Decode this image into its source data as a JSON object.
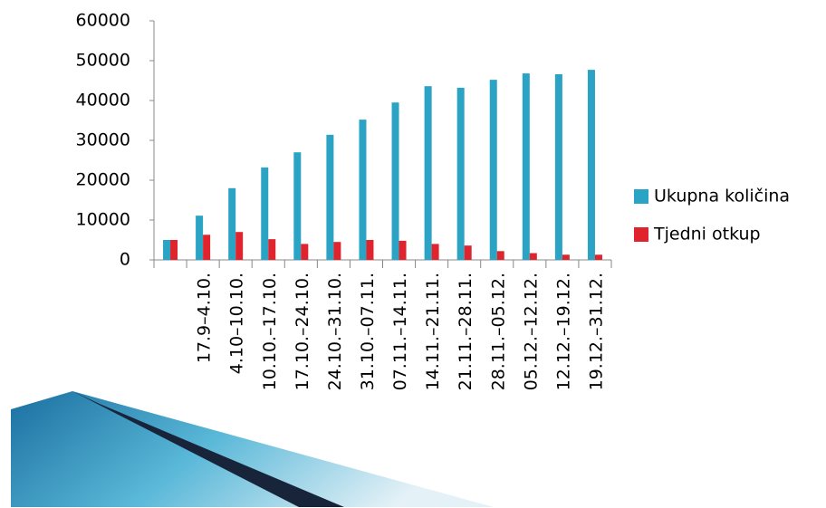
{
  "chart_data": {
    "type": "bar",
    "categories": [
      null,
      "17.9–4.10.",
      "4.10–10.10.",
      "10.10.–17.10.",
      "17.10.–24.10.",
      "24.10.–31.10.",
      "31.10.–07.11.",
      "07.11.–14.11.",
      "14.11.–21.11.",
      "21.11.–28.11.",
      "28.11.–05.12.",
      "05.12.–12.12.",
      "12.12.–19.12.",
      "19.12.–31.12."
    ],
    "series": [
      {
        "name": "Ukupna količina",
        "color": "#2aa3c4",
        "values": [
          5000,
          11100,
          18000,
          23200,
          27000,
          31400,
          35200,
          39500,
          43600,
          43200,
          45200,
          46800,
          46600,
          47700
        ]
      },
      {
        "name": "Tjedni otkup",
        "color": "#e0242e",
        "values": [
          5000,
          6300,
          7000,
          5200,
          4000,
          4500,
          5000,
          4800,
          4000,
          3600,
          2200,
          1700,
          1300,
          1300
        ]
      }
    ],
    "ylim": [
      0,
      60000
    ],
    "yticks": [
      0,
      10000,
      20000,
      30000,
      40000,
      50000,
      60000
    ],
    "grid": false,
    "legend": "right"
  }
}
